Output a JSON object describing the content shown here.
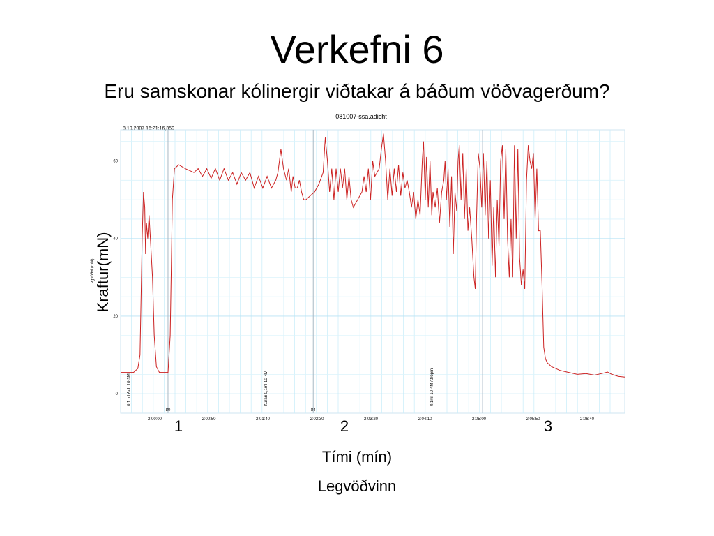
{
  "slide": {
    "title": "Verkefni 6",
    "subtitle": "Eru samskonar kólinergir viðtakar á báðum vöðvagerðum?",
    "x_label": "Tími (mín)",
    "caption": "Legvöðvinn",
    "y_label": "Kraftur(mN)",
    "markers": [
      "1",
      "2",
      "3"
    ]
  },
  "chart_data": {
    "type": "line",
    "title": "081007-ssa.adicht",
    "timestamp": "8.10.2007 16:21:16,359",
    "ylabel": "Legvöðvi (mN)",
    "ylim": [
      -5,
      68
    ],
    "yticks": [
      0,
      20,
      40,
      60
    ],
    "xtick_labels": [
      "2:00:00",
      "2:00:50",
      "2:01:40",
      "2:02:30",
      "2:03:20",
      "2:04:10",
      "2:05:00",
      "2:05:50",
      "2:06:40"
    ],
    "grid": true,
    "line_color": "#cc2222",
    "comment_lines": [
      {
        "label": "80",
        "t": 0.11
      },
      {
        "label": "84",
        "t": 0.447
      },
      {
        "label": "",
        "t": 0.84
      }
    ],
    "annotations": [
      {
        "text": "0,1 ml Ach 10-3M",
        "t": 0.012
      },
      {
        "text": "Kúrari 0,1ml 10-4M",
        "t": 0.33
      },
      {
        "text": "0,1ml 10-4M Atrópín",
        "t": 0.715
      }
    ],
    "series": [
      {
        "values": [
          [
            0.0,
            5.5
          ],
          [
            0.03,
            5.5
          ],
          [
            0.04,
            6.5
          ],
          [
            0.045,
            10
          ],
          [
            0.05,
            40
          ],
          [
            0.053,
            52
          ],
          [
            0.056,
            48
          ],
          [
            0.058,
            36
          ],
          [
            0.06,
            44
          ],
          [
            0.063,
            40
          ],
          [
            0.066,
            46
          ],
          [
            0.07,
            38
          ],
          [
            0.074,
            30
          ],
          [
            0.078,
            15
          ],
          [
            0.083,
            7
          ],
          [
            0.09,
            5.5
          ],
          [
            0.11,
            5.5
          ],
          [
            0.115,
            15
          ],
          [
            0.12,
            50
          ],
          [
            0.125,
            58
          ],
          [
            0.135,
            59
          ],
          [
            0.15,
            58
          ],
          [
            0.17,
            57
          ],
          [
            0.18,
            58
          ],
          [
            0.19,
            56
          ],
          [
            0.2,
            58
          ],
          [
            0.21,
            55.5
          ],
          [
            0.22,
            58
          ],
          [
            0.23,
            55
          ],
          [
            0.24,
            58
          ],
          [
            0.25,
            55
          ],
          [
            0.26,
            57
          ],
          [
            0.27,
            54
          ],
          [
            0.28,
            57
          ],
          [
            0.29,
            55
          ],
          [
            0.3,
            57
          ],
          [
            0.31,
            53
          ],
          [
            0.32,
            56
          ],
          [
            0.33,
            53
          ],
          [
            0.34,
            56
          ],
          [
            0.35,
            53
          ],
          [
            0.36,
            55
          ],
          [
            0.365,
            57
          ],
          [
            0.372,
            63
          ],
          [
            0.378,
            58
          ],
          [
            0.385,
            55
          ],
          [
            0.39,
            58
          ],
          [
            0.396,
            52
          ],
          [
            0.4,
            56
          ],
          [
            0.405,
            53
          ],
          [
            0.41,
            53
          ],
          [
            0.415,
            55
          ],
          [
            0.42,
            52
          ],
          [
            0.425,
            50
          ],
          [
            0.43,
            50
          ],
          [
            0.44,
            51
          ],
          [
            0.45,
            52
          ],
          [
            0.46,
            54
          ],
          [
            0.47,
            57
          ],
          [
            0.475,
            66
          ],
          [
            0.48,
            60
          ],
          [
            0.485,
            52
          ],
          [
            0.49,
            58
          ],
          [
            0.495,
            50
          ],
          [
            0.5,
            58
          ],
          [
            0.505,
            52
          ],
          [
            0.51,
            58
          ],
          [
            0.515,
            53
          ],
          [
            0.52,
            58
          ],
          [
            0.525,
            50
          ],
          [
            0.53,
            56
          ],
          [
            0.535,
            50
          ],
          [
            0.54,
            48
          ],
          [
            0.55,
            50
          ],
          [
            0.56,
            52
          ],
          [
            0.565,
            56
          ],
          [
            0.57,
            52
          ],
          [
            0.575,
            58
          ],
          [
            0.58,
            50
          ],
          [
            0.585,
            60
          ],
          [
            0.59,
            56
          ],
          [
            0.6,
            58
          ],
          [
            0.605,
            63
          ],
          [
            0.61,
            67
          ],
          [
            0.615,
            60
          ],
          [
            0.62,
            50
          ],
          [
            0.625,
            58
          ],
          [
            0.63,
            51
          ],
          [
            0.635,
            58
          ],
          [
            0.64,
            52
          ],
          [
            0.645,
            59
          ],
          [
            0.65,
            51
          ],
          [
            0.655,
            57
          ],
          [
            0.66,
            53
          ],
          [
            0.665,
            55
          ],
          [
            0.67,
            52
          ],
          [
            0.675,
            48
          ],
          [
            0.68,
            52
          ],
          [
            0.685,
            45
          ],
          [
            0.69,
            50
          ],
          [
            0.695,
            46
          ],
          [
            0.7,
            60
          ],
          [
            0.703,
            65
          ],
          [
            0.707,
            50
          ],
          [
            0.71,
            61
          ],
          [
            0.714,
            48
          ],
          [
            0.718,
            60
          ],
          [
            0.722,
            46
          ],
          [
            0.725,
            52
          ],
          [
            0.73,
            48
          ],
          [
            0.735,
            53
          ],
          [
            0.74,
            44
          ],
          [
            0.745,
            52
          ],
          [
            0.75,
            55
          ],
          [
            0.753,
            60
          ],
          [
            0.756,
            50
          ],
          [
            0.76,
            58
          ],
          [
            0.764,
            43
          ],
          [
            0.768,
            56
          ],
          [
            0.772,
            36
          ],
          [
            0.776,
            52
          ],
          [
            0.78,
            47
          ],
          [
            0.783,
            60
          ],
          [
            0.786,
            64
          ],
          [
            0.79,
            50
          ],
          [
            0.794,
            62
          ],
          [
            0.798,
            45
          ],
          [
            0.802,
            58
          ],
          [
            0.806,
            42
          ],
          [
            0.81,
            48
          ],
          [
            0.815,
            40
          ],
          [
            0.82,
            30
          ],
          [
            0.823,
            27
          ],
          [
            0.826,
            45
          ],
          [
            0.83,
            62
          ],
          [
            0.834,
            58
          ],
          [
            0.838,
            48
          ],
          [
            0.842,
            62
          ],
          [
            0.846,
            46
          ],
          [
            0.85,
            60
          ],
          [
            0.854,
            40
          ],
          [
            0.858,
            55
          ],
          [
            0.862,
            33
          ],
          [
            0.866,
            48
          ],
          [
            0.87,
            30
          ],
          [
            0.874,
            50
          ],
          [
            0.878,
            38
          ],
          [
            0.882,
            60
          ],
          [
            0.886,
            64
          ],
          [
            0.89,
            45
          ],
          [
            0.894,
            63
          ],
          [
            0.898,
            40
          ],
          [
            0.902,
            30
          ],
          [
            0.906,
            45
          ],
          [
            0.91,
            30
          ],
          [
            0.914,
            64
          ],
          [
            0.918,
            40
          ],
          [
            0.922,
            63
          ],
          [
            0.926,
            35
          ],
          [
            0.93,
            28
          ],
          [
            0.934,
            32
          ],
          [
            0.938,
            27
          ],
          [
            0.942,
            55
          ],
          [
            0.946,
            64
          ],
          [
            0.95,
            60
          ],
          [
            0.954,
            58
          ],
          [
            0.958,
            62
          ],
          [
            0.962,
            45
          ],
          [
            0.966,
            58
          ],
          [
            0.97,
            42
          ],
          [
            0.974,
            42
          ],
          [
            0.978,
            28
          ],
          [
            0.982,
            12
          ],
          [
            0.986,
            9
          ],
          [
            0.99,
            8
          ],
          [
            1.0,
            7
          ],
          [
            1.02,
            6
          ],
          [
            1.04,
            5.5
          ],
          [
            1.06,
            5
          ],
          [
            1.08,
            5.2
          ],
          [
            1.1,
            4.8
          ],
          [
            1.12,
            5.3
          ],
          [
            1.13,
            5.6
          ],
          [
            1.14,
            5.0
          ],
          [
            1.155,
            4.5
          ],
          [
            1.17,
            4.3
          ]
        ]
      }
    ]
  }
}
